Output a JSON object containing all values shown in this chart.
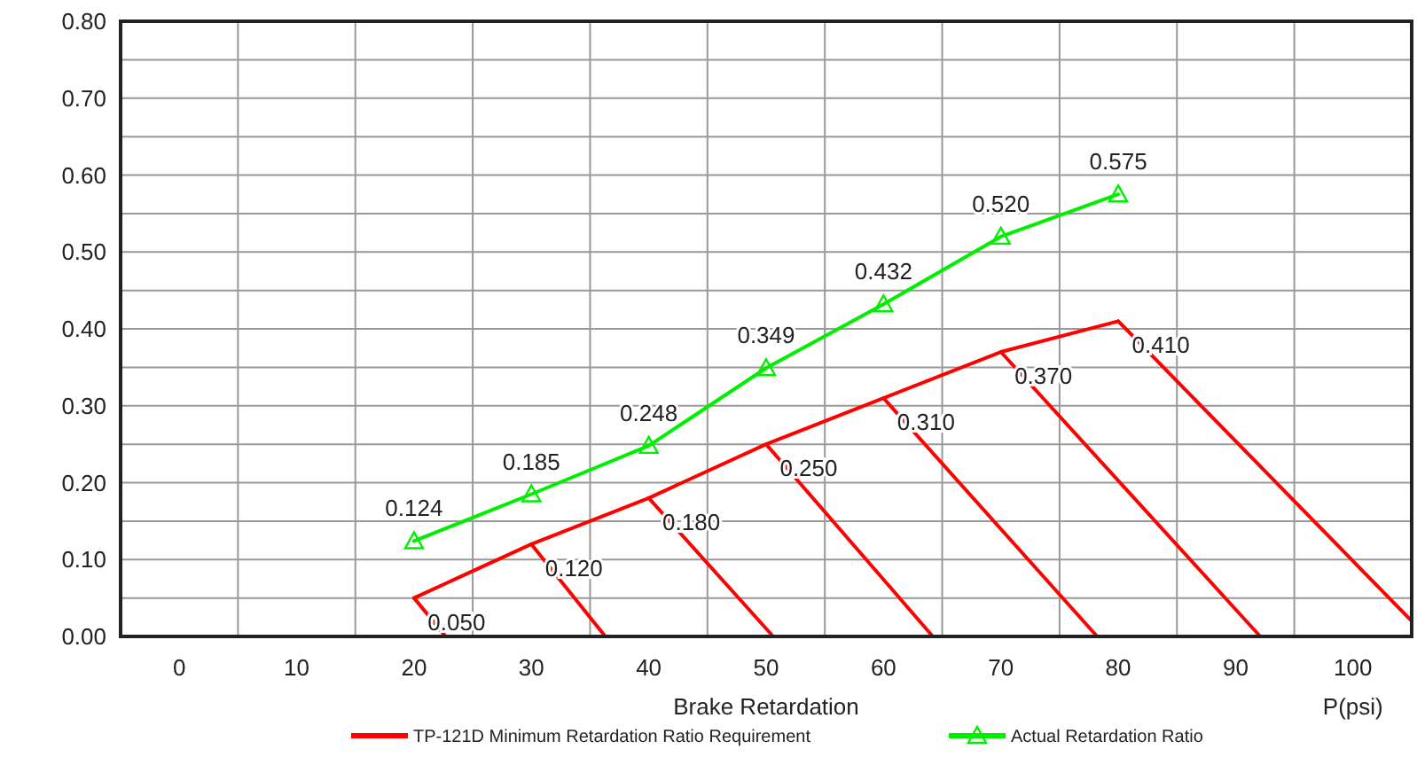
{
  "chart_data": {
    "type": "line",
    "xlabel": "Brake Retardation",
    "annotations": [
      "P(psi)"
    ],
    "xlim": [
      -5,
      105
    ],
    "xticks": [
      {
        "value": -5,
        "label": null
      },
      0,
      {
        "value": 5,
        "label": null
      },
      10,
      {
        "value": 15,
        "label": null
      },
      20,
      {
        "value": 25,
        "label": null
      },
      30,
      {
        "value": 35,
        "label": null
      },
      40,
      {
        "value": 45,
        "label": null
      },
      50,
      {
        "value": 55,
        "label": null
      },
      60,
      {
        "value": 65,
        "label": null
      },
      70,
      {
        "value": 75,
        "label": null
      },
      80,
      {
        "value": 85,
        "label": null
      },
      90,
      {
        "value": 95,
        "label": null
      },
      100,
      {
        "value": 105,
        "label": null
      }
    ],
    "ylim": [
      0,
      0.8
    ],
    "yticks": [
      "0.00",
      {
        "value": 0.05,
        "label": null
      },
      "0.10",
      {
        "value": 0.15,
        "label": null
      },
      "0.20",
      {
        "value": 0.25,
        "label": null
      },
      "0.30",
      {
        "value": 0.35,
        "label": null
      },
      "0.40",
      {
        "value": 0.45,
        "label": null
      },
      "0.50",
      {
        "value": 0.55,
        "label": null
      },
      "0.60",
      {
        "value": 0.65,
        "label": null
      },
      "0.70",
      {
        "value": 0.75,
        "label": null
      },
      "0.80"
    ],
    "grid": true,
    "legend": "bottom",
    "series": [
      {
        "name": "TP-121D Minimum Retardation Ratio Requirement",
        "color": "#ff0000",
        "marker": "none",
        "x": [
          20,
          30,
          40,
          50,
          60,
          70,
          80
        ],
        "values": [
          0.05,
          0.12,
          0.18,
          0.25,
          0.31,
          0.37,
          0.41
        ],
        "value_labels": [
          "0.050",
          "0.120",
          "0.180",
          "0.250",
          "0.310",
          "0.370",
          "0.410"
        ]
      },
      {
        "name": "Actual Retardation Ratio",
        "color": "#00ee00",
        "marker": "triangle",
        "x": [
          20,
          30,
          40,
          50,
          60,
          70,
          80
        ],
        "values": [
          0.124,
          0.185,
          0.248,
          0.349,
          0.432,
          0.52,
          0.575
        ],
        "value_labels": [
          "0.124",
          "0.185",
          "0.248",
          "0.349",
          "0.432",
          "0.520",
          "0.575"
        ]
      },
      {
        "color": "#ff0000",
        "marker": "none",
        "x": [
          20,
          22.7
        ],
        "values": [
          0.05,
          0
        ]
      },
      {
        "color": "#ff0000",
        "marker": "none",
        "x": [
          30,
          36.3
        ],
        "values": [
          0.12,
          0
        ]
      },
      {
        "color": "#ff0000",
        "marker": "none",
        "x": [
          40,
          50.6
        ],
        "values": [
          0.18,
          0
        ]
      },
      {
        "color": "#ff0000",
        "marker": "none",
        "x": [
          50,
          64.2
        ],
        "values": [
          0.25,
          0
        ]
      },
      {
        "color": "#ff0000",
        "marker": "none",
        "x": [
          60,
          78.2
        ],
        "values": [
          0.31,
          0
        ]
      },
      {
        "color": "#ff0000",
        "marker": "none",
        "x": [
          70,
          92.1
        ],
        "values": [
          0.37,
          0
        ]
      },
      {
        "color": "#ff0000",
        "marker": "none",
        "x": [
          80,
          105
        ],
        "values": [
          0.41,
          0.02
        ]
      }
    ]
  }
}
